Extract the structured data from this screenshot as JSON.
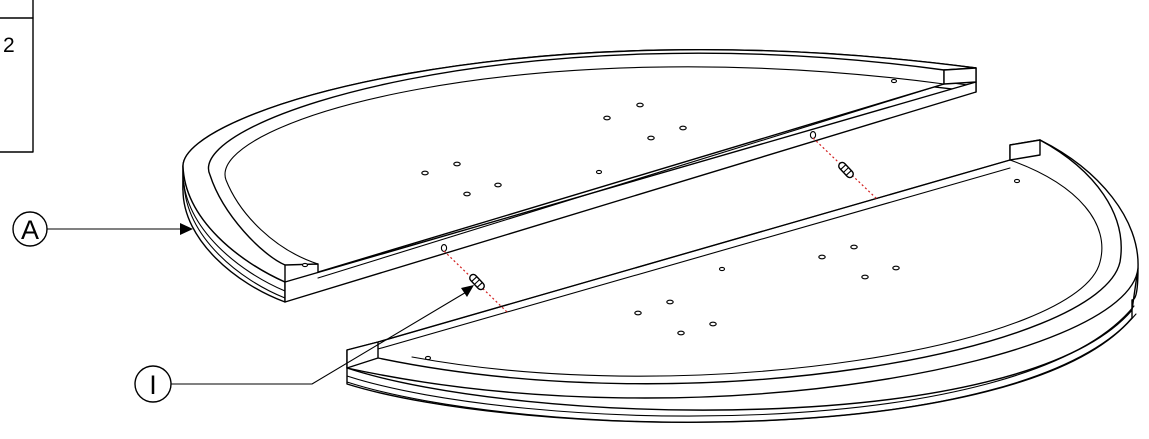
{
  "step_box": {
    "number": "2"
  },
  "callouts": [
    {
      "id": "A",
      "label": "A"
    },
    {
      "id": "I",
      "label": "I"
    }
  ]
}
